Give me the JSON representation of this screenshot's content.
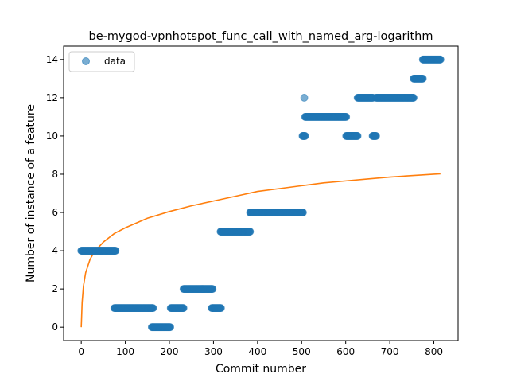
{
  "chart_data": {
    "type": "scatter",
    "title": "be-mygod-vpnhotspot_func_call_with_named_arg-logarithm",
    "xlabel": "Commit number",
    "ylabel": "Number of instance of a feature",
    "xlim": [
      -40,
      855
    ],
    "ylim": [
      -0.7,
      14.7
    ],
    "xticks": [
      0,
      100,
      200,
      300,
      400,
      500,
      600,
      700,
      800
    ],
    "yticks": [
      0,
      2,
      4,
      6,
      8,
      10,
      12,
      14
    ],
    "legend": {
      "position": "top-left",
      "entries": [
        "data"
      ]
    },
    "grid": false,
    "colors": {
      "data": "#1f77b4",
      "fit": "#ff7f0e"
    },
    "series": [
      {
        "name": "data",
        "kind": "scatter",
        "segments": [
          {
            "x_start": 0,
            "x_end": 78,
            "y": 4
          },
          {
            "x_start": 75,
            "x_end": 163,
            "y": 1
          },
          {
            "x_start": 160,
            "x_end": 202,
            "y": 0
          },
          {
            "x_start": 203,
            "x_end": 232,
            "y": 1
          },
          {
            "x_start": 232,
            "x_end": 298,
            "y": 2
          },
          {
            "x_start": 296,
            "x_end": 317,
            "y": 1
          },
          {
            "x_start": 316,
            "x_end": 383,
            "y": 5
          },
          {
            "x_start": 383,
            "x_end": 503,
            "y": 6
          },
          {
            "x_start": 502,
            "x_end": 508,
            "y": 10
          },
          {
            "x_start": 508,
            "x_end": 601,
            "y": 11
          },
          {
            "x_start": 601,
            "x_end": 627,
            "y": 10
          },
          {
            "x_start": 627,
            "x_end": 662,
            "y": 12
          },
          {
            "x_start": 661,
            "x_end": 669,
            "y": 10
          },
          {
            "x_start": 669,
            "x_end": 754,
            "y": 12
          },
          {
            "x_start": 754,
            "x_end": 775,
            "y": 13
          },
          {
            "x_start": 775,
            "x_end": 815,
            "y": 14
          }
        ],
        "points": [
          {
            "x": 506,
            "y": 12
          }
        ]
      },
      {
        "kind": "line",
        "function": "logarithmic fit",
        "samples": [
          {
            "x": 0,
            "y": 0
          },
          {
            "x": 2,
            "y": 1.3
          },
          {
            "x": 5,
            "y": 2.15
          },
          {
            "x": 10,
            "y": 2.85
          },
          {
            "x": 20,
            "y": 3.55
          },
          {
            "x": 30,
            "y": 3.95
          },
          {
            "x": 50,
            "y": 4.45
          },
          {
            "x": 75,
            "y": 4.9
          },
          {
            "x": 100,
            "y": 5.2
          },
          {
            "x": 150,
            "y": 5.7
          },
          {
            "x": 200,
            "y": 6.05
          },
          {
            "x": 250,
            "y": 6.35
          },
          {
            "x": 300,
            "y": 6.6
          },
          {
            "x": 350,
            "y": 6.85
          },
          {
            "x": 400,
            "y": 7.1
          },
          {
            "x": 450,
            "y": 7.25
          },
          {
            "x": 500,
            "y": 7.4
          },
          {
            "x": 550,
            "y": 7.55
          },
          {
            "x": 600,
            "y": 7.65
          },
          {
            "x": 650,
            "y": 7.75
          },
          {
            "x": 700,
            "y": 7.85
          },
          {
            "x": 750,
            "y": 7.93
          },
          {
            "x": 800,
            "y": 8.0
          },
          {
            "x": 815,
            "y": 8.02
          }
        ]
      }
    ]
  }
}
